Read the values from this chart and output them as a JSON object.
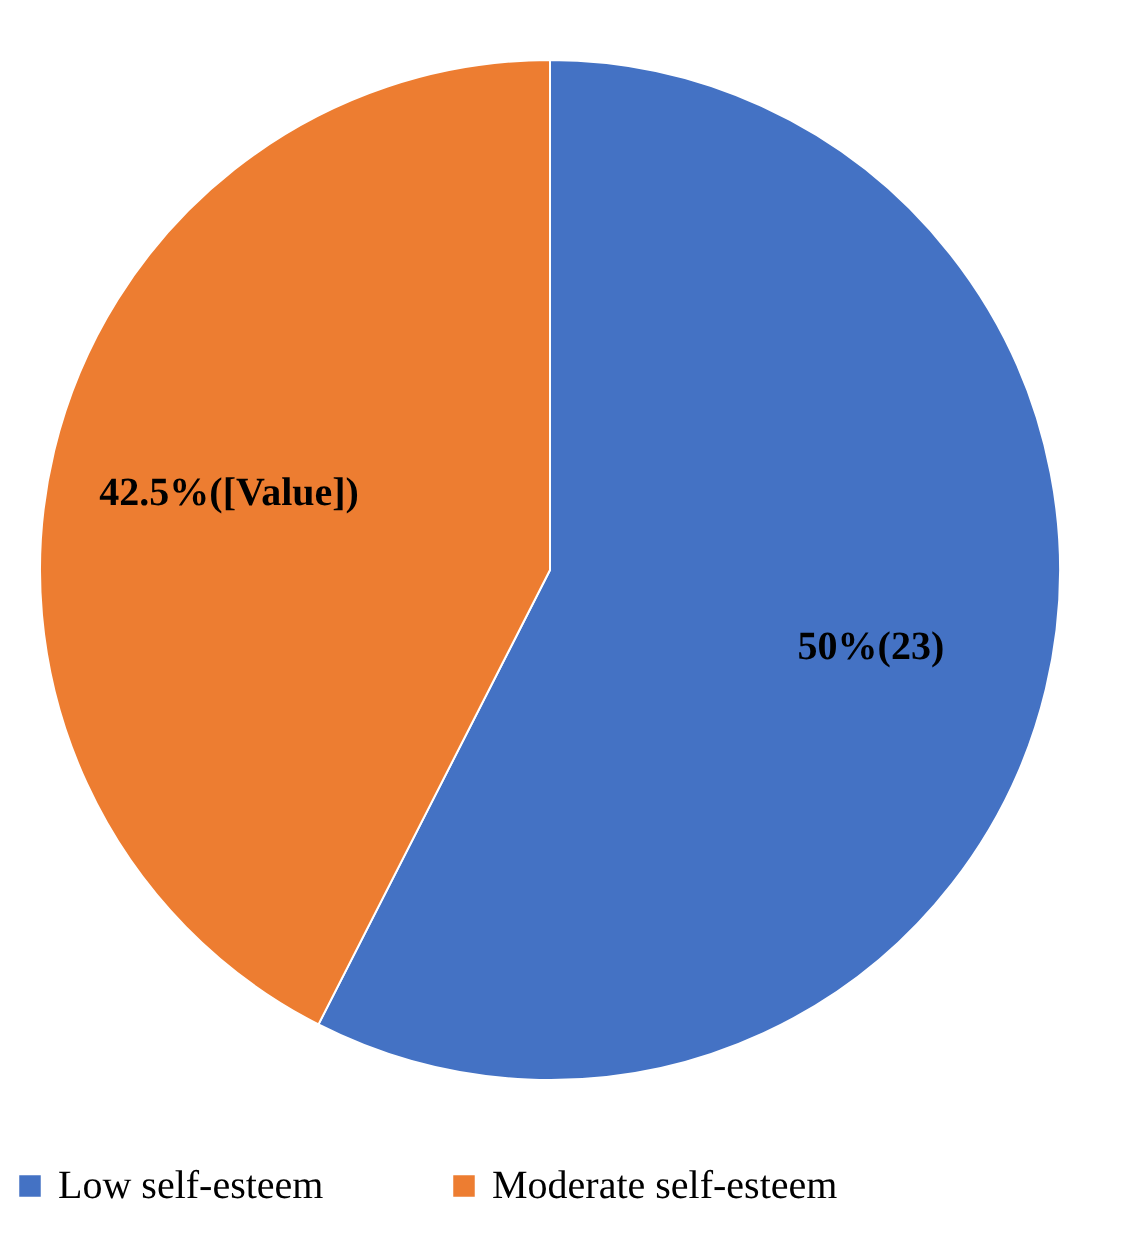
{
  "chart_data": {
    "type": "pie",
    "categories": [
      "Low self-esteem",
      "Moderate self-esteem"
    ],
    "values": [
      57.5,
      42.5
    ],
    "colors": [
      "#4472c4",
      "#ed7d31"
    ],
    "annotations": [
      "50%(23)",
      "42.5%([Value])"
    ],
    "legend": "bottom"
  }
}
